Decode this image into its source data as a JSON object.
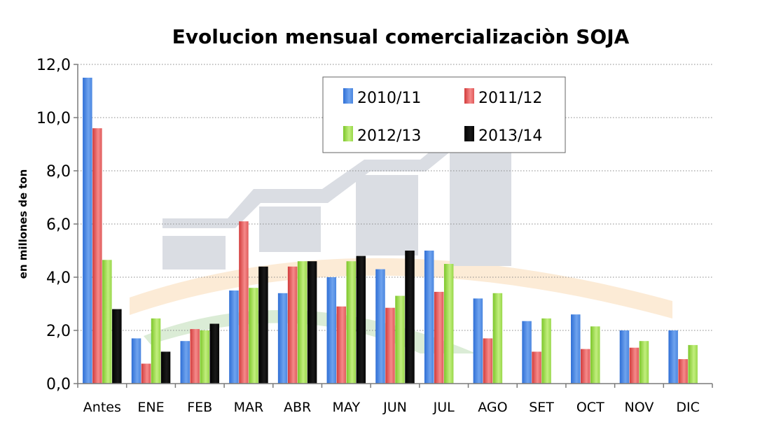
{
  "chart_data": {
    "type": "bar",
    "title": "Evolucion mensual comercializaciòn SOJA",
    "xlabel": "",
    "ylabel": "en millones de ton",
    "ylim": [
      0,
      12
    ],
    "y_ticks": [
      "0,0",
      "2,0",
      "4,0",
      "6,0",
      "8,0",
      "10,0",
      "12,0"
    ],
    "grid": true,
    "legend_position": "top-center",
    "categories": [
      "Antes",
      "ENE",
      "FEB",
      "MAR",
      "ABR",
      "MAY",
      "JUN",
      "JUL",
      "AGO",
      "SET",
      "OCT",
      "NOV",
      "DIC"
    ],
    "series": [
      {
        "name": "2010/11",
        "color": "#4a86e0",
        "values": [
          11.5,
          1.7,
          1.6,
          3.5,
          3.4,
          4.0,
          4.3,
          5.0,
          3.2,
          2.35,
          2.6,
          2.0,
          2.0
        ]
      },
      {
        "name": "2011/12",
        "color": "#e05a5a",
        "values": [
          9.6,
          0.75,
          2.05,
          6.1,
          4.4,
          2.9,
          2.85,
          3.45,
          1.7,
          1.2,
          1.3,
          1.35,
          0.92
        ]
      },
      {
        "name": "2012/13",
        "color": "#98d84a",
        "values": [
          4.65,
          2.45,
          2.0,
          3.6,
          4.6,
          4.6,
          3.3,
          4.5,
          3.4,
          2.45,
          2.15,
          1.6,
          1.45
        ]
      },
      {
        "name": "2013/14",
        "color": "#050505",
        "values": [
          2.8,
          1.2,
          2.25,
          4.4,
          4.6,
          4.8,
          5.0,
          null,
          null,
          null,
          null,
          null,
          null
        ]
      }
    ]
  }
}
